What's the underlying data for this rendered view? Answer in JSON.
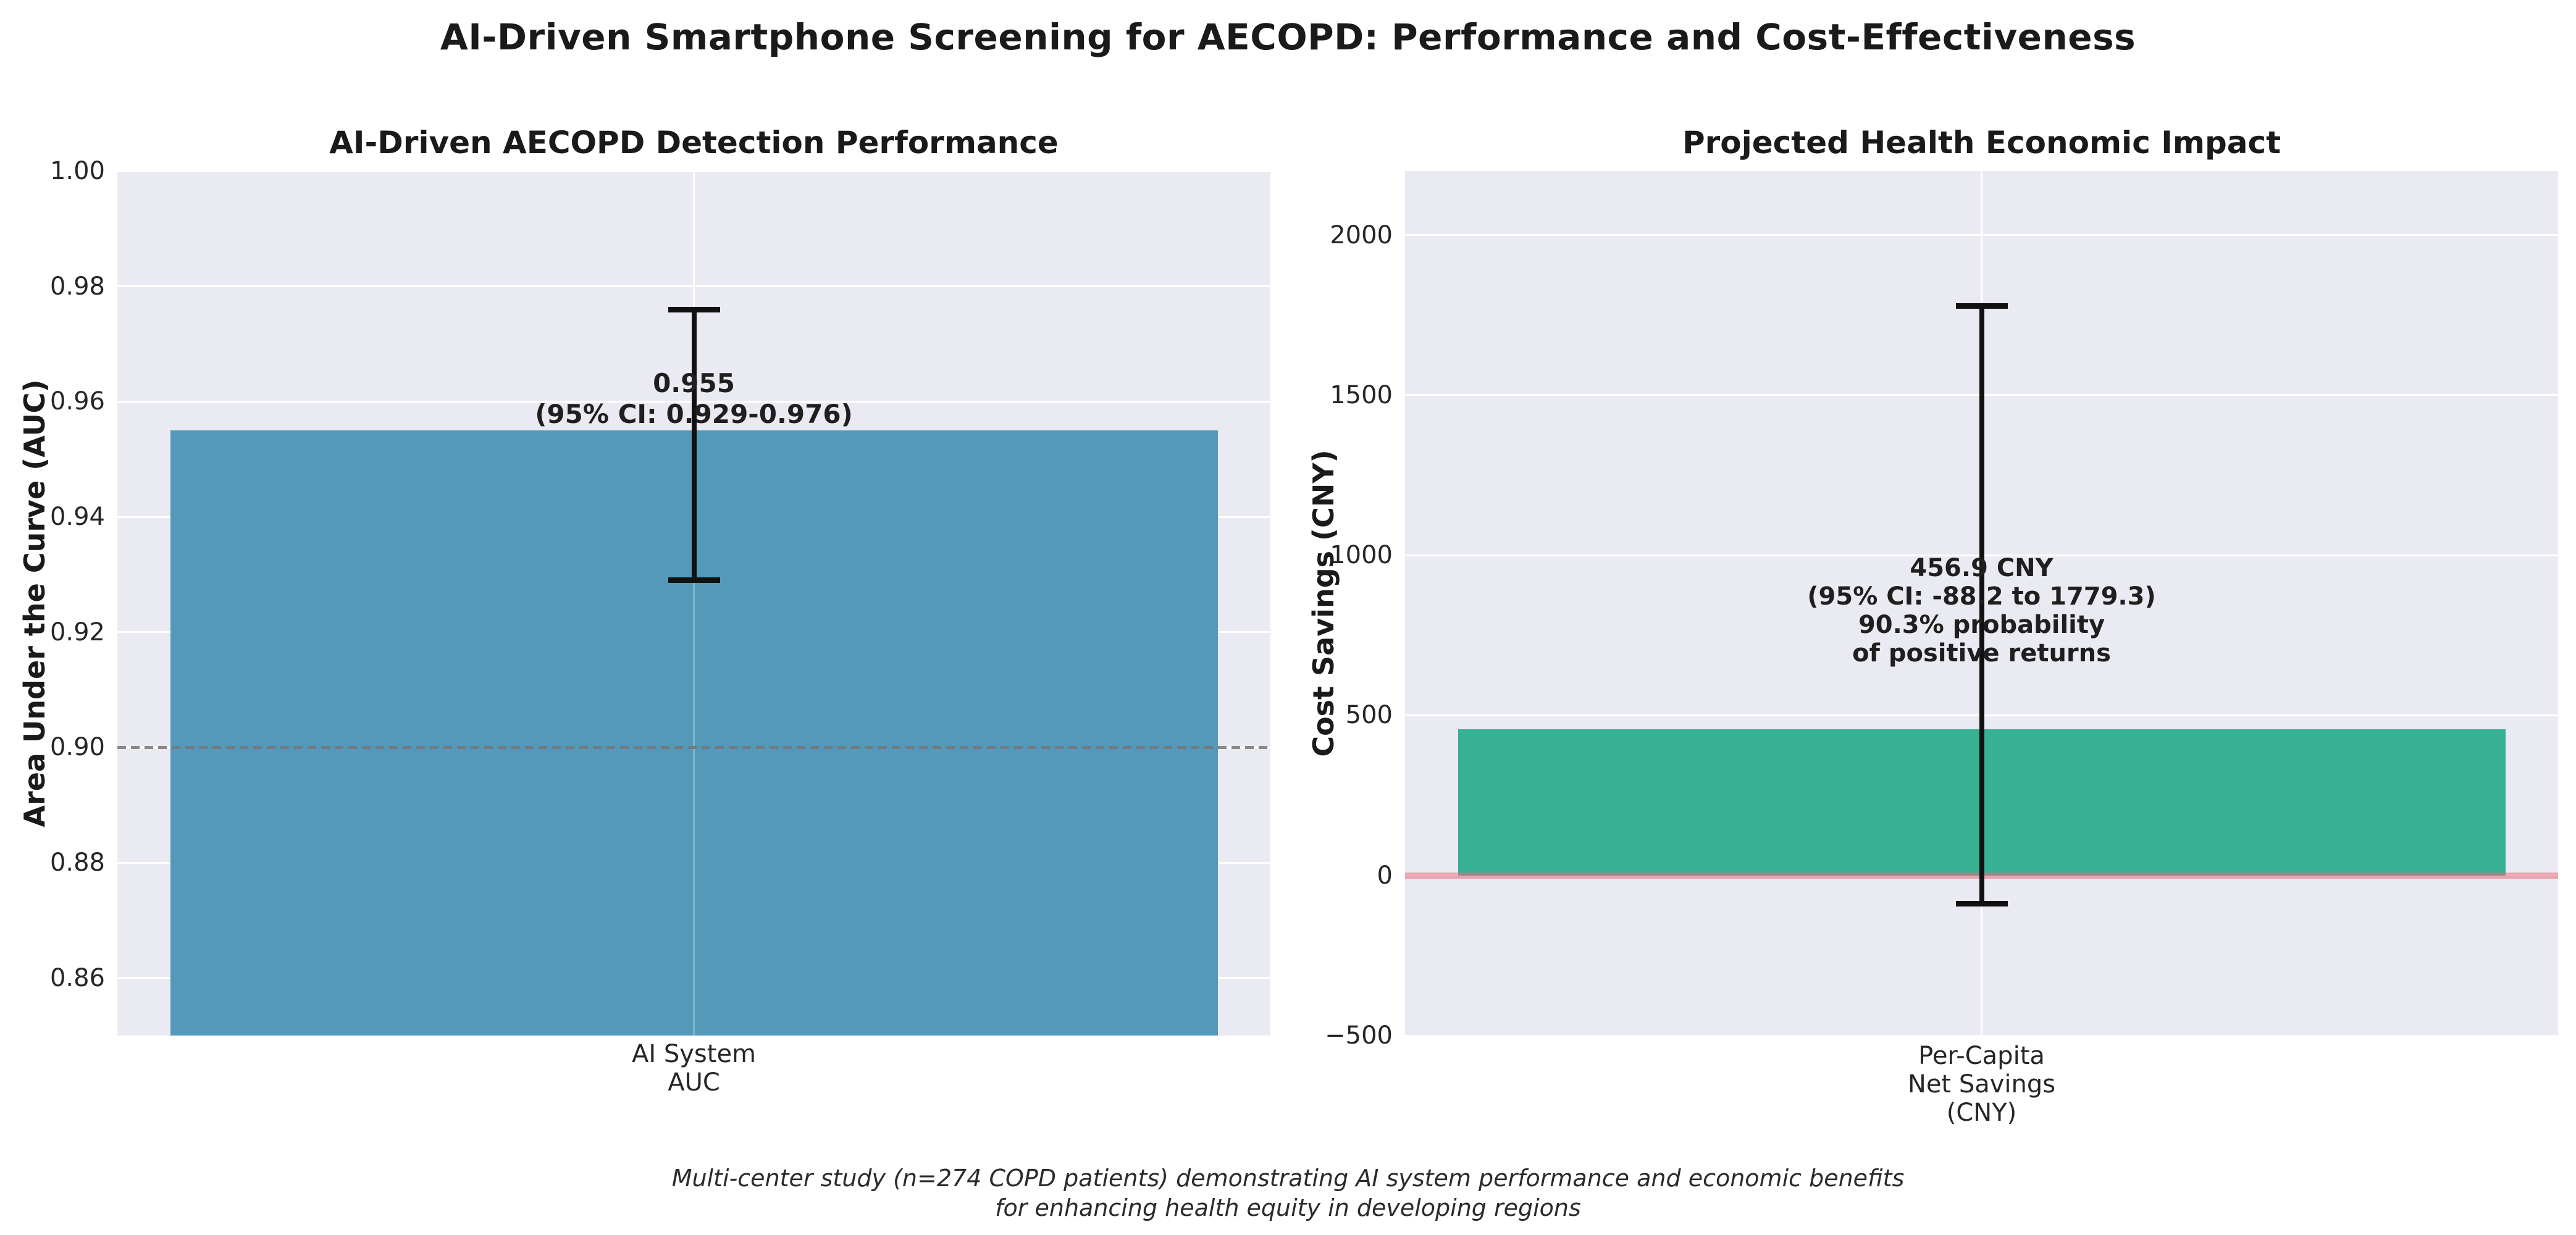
{
  "figure": {
    "suptitle": "AI-Driven Smartphone Screening for AECOPD: Performance and Cost-Effectiveness",
    "caption_line1": "Multi-center study (n=274 COPD patients) demonstrating AI system performance and economic benefits",
    "caption_line2": "for enhancing health equity in developing regions"
  },
  "chart_data": [
    {
      "type": "bar",
      "title": "AI-Driven AECOPD Detection Performance",
      "ylabel": "Area Under the Curve (AUC)",
      "xlabel": "",
      "categories": [
        "AI System\nAUC"
      ],
      "xtick_lines": [
        "AI System",
        "AUC"
      ],
      "values": [
        0.955
      ],
      "error_bars": {
        "ci_low": [
          0.929
        ],
        "ci_high": [
          0.976
        ]
      },
      "annotation_lines": [
        "0.955",
        "(95% CI: 0.929-0.976)"
      ],
      "ylim": [
        0.85,
        1.0
      ],
      "yticks": [
        0.86,
        0.88,
        0.9,
        0.92,
        0.94,
        0.96,
        0.98,
        1.0
      ],
      "ytick_labels": [
        "0.86",
        "0.88",
        "0.90",
        "0.92",
        "0.94",
        "0.96",
        "0.98",
        "1.00"
      ],
      "reference_line": {
        "y": 0.9,
        "style": "dashed",
        "color": "#767676"
      },
      "bar_color": "#5499BA",
      "bar_base": "ymin",
      "grid": true,
      "legend": null,
      "plot_bg": "#EAEAF2"
    },
    {
      "type": "bar",
      "title": "Projected Health Economic Impact",
      "ylabel": "Cost Savings (CNY)",
      "xlabel": "",
      "categories": [
        "Per-Capita\nNet Savings\n(CNY)"
      ],
      "xtick_lines": [
        "Per-Capita",
        "Net Savings",
        "(CNY)"
      ],
      "values": [
        456.9
      ],
      "error_bars": {
        "ci_low": [
          -88.2
        ],
        "ci_high": [
          1779.3
        ]
      },
      "annotation_lines": [
        "456.9 CNY",
        "(95% CI: -88.2 to 1779.3)",
        "90.3% probability",
        "of positive returns"
      ],
      "probability_of_positive_returns": "90.3%",
      "ylim": [
        -500,
        2200
      ],
      "yticks": [
        -500,
        0,
        500,
        1000,
        1500,
        2000
      ],
      "ytick_labels": [
        "−500",
        "0",
        "500",
        "1000",
        "1500",
        "2000"
      ],
      "reference_line": {
        "y": 0,
        "style": "solid",
        "color": "#E86A7E"
      },
      "bar_color": "#36B193",
      "bar_base": 0,
      "grid": true,
      "legend": null,
      "plot_bg": "#EAEAF2"
    }
  ]
}
